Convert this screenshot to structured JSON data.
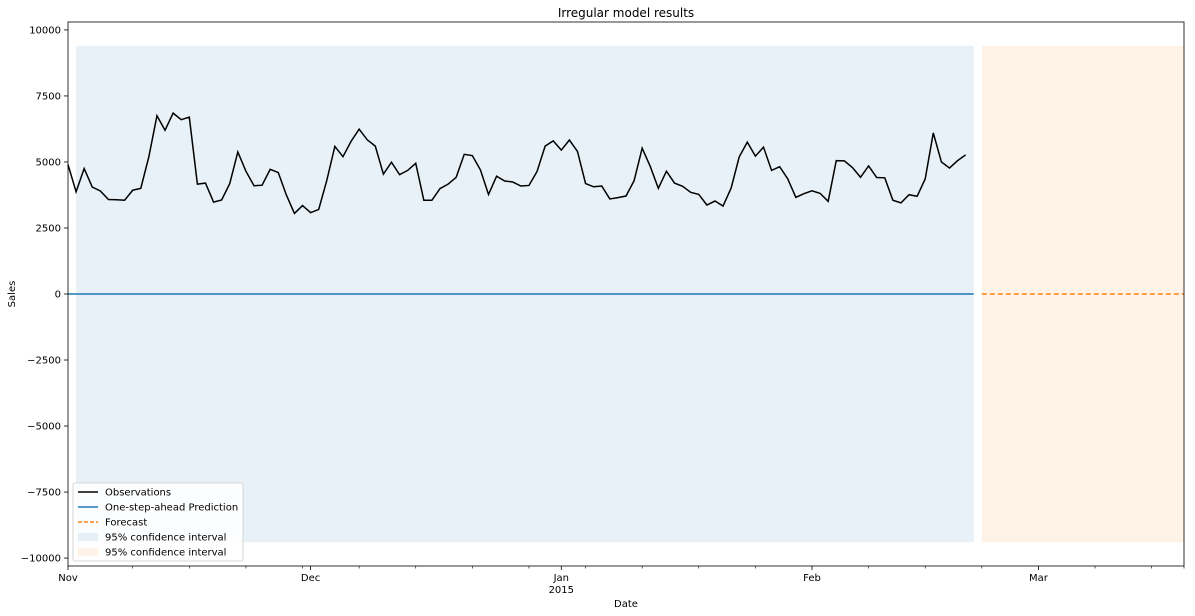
{
  "chart_data": {
    "type": "line",
    "title": "Irregular model results",
    "xlabel": "Date",
    "ylabel": "Sales",
    "xlim": [
      "2014-11-01",
      "2015-03-19"
    ],
    "ylim": [
      -10300,
      10300
    ],
    "yticks": [
      -10000,
      -7500,
      -5000,
      -2500,
      0,
      2500,
      5000,
      7500,
      10000
    ],
    "ytick_labels": [
      "−10000",
      "−7500",
      "−5000",
      "−2500",
      "0",
      "2500",
      "5000",
      "7500",
      "10000"
    ],
    "xticks_major": [
      {
        "date": "2014-11-01",
        "label": "Nov",
        "sublabel": ""
      },
      {
        "date": "2014-12-01",
        "label": "Dec",
        "sublabel": ""
      },
      {
        "date": "2015-01-01",
        "label": "Jan",
        "sublabel": "2015"
      },
      {
        "date": "2015-02-01",
        "label": "Feb",
        "sublabel": ""
      },
      {
        "date": "2015-03-01",
        "label": "Mar",
        "sublabel": ""
      }
    ],
    "xticks_minor": [
      "2014-11-09",
      "2014-11-16",
      "2014-11-23",
      "2014-11-30",
      "2014-12-07",
      "2014-12-14",
      "2014-12-21",
      "2014-12-28",
      "2015-01-04",
      "2015-01-11",
      "2015-01-18",
      "2015-01-25",
      "2015-02-08",
      "2015-02-15",
      "2015-02-22",
      "2015-03-08",
      "2015-03-15"
    ],
    "legend_position": "lower-left",
    "series": [
      {
        "name": "Observations",
        "kind": "line",
        "color": "#000000",
        "x_start": "2014-11-01",
        "x_step_days": 1,
        "values": [
          4900,
          3870,
          4750,
          4050,
          3900,
          3580,
          3570,
          3550,
          3930,
          4000,
          5200,
          6750,
          6200,
          6850,
          6600,
          6700,
          4160,
          4200,
          3480,
          3560,
          4180,
          5380,
          4650,
          4100,
          4120,
          4720,
          4600,
          3750,
          3050,
          3350,
          3080,
          3200,
          4300,
          5590,
          5200,
          5780,
          6240,
          5840,
          5600,
          4540,
          4990,
          4520,
          4680,
          4950,
          3550,
          3550,
          3990,
          4160,
          4420,
          5290,
          5240,
          4700,
          3770,
          4460,
          4280,
          4240,
          4090,
          4110,
          4640,
          5600,
          5800,
          5450,
          5830,
          5400,
          4180,
          4060,
          4090,
          3600,
          3650,
          3710,
          4290,
          5520,
          4830,
          4000,
          4650,
          4200,
          4080,
          3850,
          3770,
          3370,
          3520,
          3330,
          4010,
          5190,
          5750,
          5220,
          5560,
          4680,
          4820,
          4360,
          3660,
          3800,
          3910,
          3810,
          3510,
          5050,
          5040,
          4790,
          4420,
          4850,
          4410,
          4400,
          3550,
          3450,
          3760,
          3700,
          4360,
          6100,
          5000,
          4770,
          5050,
          5270
        ]
      },
      {
        "name": "One-step-ahead Prediction",
        "kind": "line",
        "color": "#1f77b4",
        "x": [
          "2014-11-01",
          "2015-02-21"
        ],
        "values": [
          0,
          0
        ]
      },
      {
        "name": "Forecast",
        "kind": "dashed-line",
        "color": "#ff7f0e",
        "x": [
          "2015-02-22",
          "2015-03-19"
        ],
        "values": [
          0,
          0
        ]
      },
      {
        "name": "95% confidence interval",
        "kind": "band",
        "color": "#1f77b4",
        "x": [
          "2014-11-02",
          "2015-02-21"
        ],
        "lower": -9400,
        "upper": 9400
      },
      {
        "name": "95% confidence interval",
        "kind": "band",
        "color": "#ff7f0e",
        "x": [
          "2015-02-22",
          "2015-03-19"
        ],
        "lower": -9400,
        "upper": 9400
      }
    ]
  }
}
